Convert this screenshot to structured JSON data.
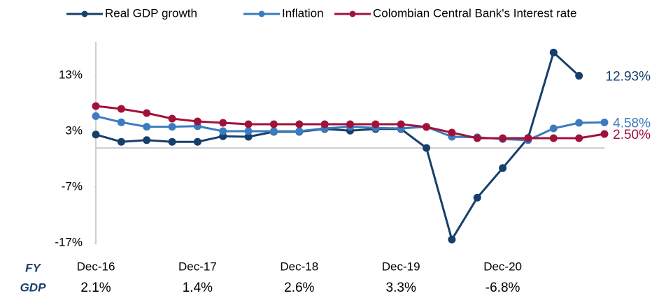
{
  "chart_data": {
    "type": "line",
    "categories": [
      "Dec-16",
      null,
      null,
      null,
      "Dec-17",
      null,
      null,
      null,
      "Dec-18",
      null,
      null,
      null,
      "Dec-19",
      null,
      null,
      null,
      "Dec-20",
      null,
      null,
      null,
      null
    ],
    "series": [
      {
        "name": "Real GDP growth",
        "color": "#173f6b",
        "values": [
          2.4,
          1.1,
          1.4,
          1.1,
          1.1,
          2.1,
          2.0,
          2.9,
          2.9,
          3.4,
          3.1,
          3.4,
          3.4,
          0.0,
          -16.4,
          -8.9,
          -3.6,
          1.8,
          17.1,
          12.93,
          null
        ],
        "value_labels": [
          null,
          null,
          null,
          null,
          null,
          null,
          null,
          null,
          null,
          null,
          null,
          null,
          null,
          null,
          null,
          null,
          null,
          null,
          null,
          "12.93%",
          null
        ]
      },
      {
        "name": "Inflation",
        "color": "#3b7bc0",
        "values": [
          5.7,
          4.6,
          3.8,
          3.8,
          3.9,
          3.0,
          3.0,
          3.0,
          3.0,
          3.5,
          3.8,
          3.6,
          3.5,
          3.8,
          2.0,
          1.9,
          1.6,
          1.4,
          3.5,
          4.5,
          4.58
        ],
        "value_labels": [
          null,
          null,
          null,
          null,
          null,
          null,
          null,
          null,
          null,
          null,
          null,
          null,
          null,
          null,
          null,
          null,
          null,
          null,
          null,
          null,
          "4.58%"
        ]
      },
      {
        "name": "Colombian Central Bank's Interest rate",
        "color": "#a1123b",
        "values": [
          7.5,
          7.0,
          6.25,
          5.25,
          4.75,
          4.5,
          4.25,
          4.25,
          4.25,
          4.25,
          4.25,
          4.25,
          4.25,
          3.75,
          2.75,
          1.75,
          1.75,
          1.75,
          1.75,
          1.75,
          2.5
        ],
        "value_labels": [
          null,
          null,
          null,
          null,
          null,
          null,
          null,
          null,
          null,
          null,
          null,
          null,
          null,
          null,
          null,
          null,
          null,
          null,
          null,
          null,
          "2.50%"
        ]
      }
    ],
    "ylim": [
      -17,
      19
    ],
    "yticks": [
      {
        "value": 13,
        "label": "13%"
      },
      {
        "value": 3,
        "label": "3%"
      },
      {
        "value": -7,
        "label": "-7%"
      },
      {
        "value": -17,
        "label": "-17%"
      }
    ],
    "legend": "top",
    "fy_gdp": {
      "title": [
        "FY",
        "GDP"
      ],
      "labels": [
        "2.1%",
        "1.4%",
        "2.6%",
        "3.3%",
        "-6.8%"
      ]
    }
  }
}
